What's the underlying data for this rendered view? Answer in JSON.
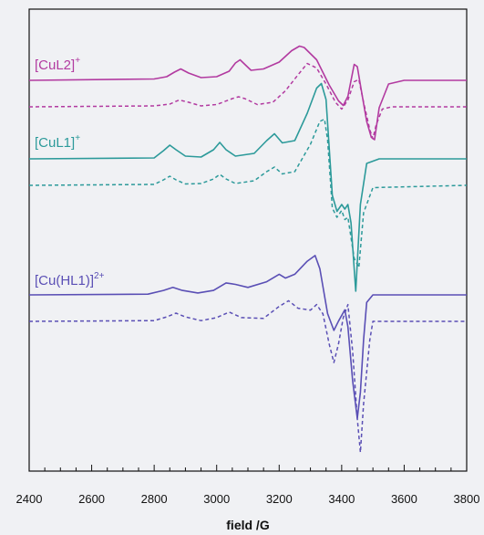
{
  "chart_data": {
    "type": "line",
    "title": "",
    "xlabel": "field /G",
    "ylabel": "",
    "xlim": [
      2400,
      3800
    ],
    "x_ticks": [
      "2400",
      "2600",
      "2800",
      "3000",
      "3200",
      "3400",
      "3600",
      "3800"
    ],
    "y_ticks_shown": false,
    "grid": false,
    "legend": "inline labels at left",
    "series": [
      {
        "name": "[CuL2]",
        "name_sup": "+",
        "color": "#b23aa0",
        "style": "solid",
        "x": [
          2400,
          2800,
          2840,
          2865,
          2885,
          2910,
          2950,
          3000,
          3040,
          3060,
          3075,
          3090,
          3110,
          3150,
          3200,
          3240,
          3265,
          3280,
          3320,
          3360,
          3390,
          3405,
          3420,
          3440,
          3450,
          3465,
          3480,
          3495,
          3505,
          3520,
          3550,
          3600,
          3800
        ],
        "y": [
          0,
          0.03,
          0.08,
          0.18,
          0.25,
          0.16,
          0.06,
          0.08,
          0.2,
          0.38,
          0.45,
          0.35,
          0.22,
          0.25,
          0.4,
          0.65,
          0.75,
          0.72,
          0.45,
          -0.1,
          -0.45,
          -0.55,
          -0.35,
          0.35,
          0.3,
          -0.3,
          -0.9,
          -1.25,
          -1.3,
          -0.6,
          -0.08,
          0,
          0
        ]
      },
      {
        "name": "",
        "color": "#b23aa0",
        "style": "dashed",
        "x": [
          2400,
          2800,
          2850,
          2880,
          2910,
          2950,
          3000,
          3050,
          3070,
          3090,
          3130,
          3180,
          3220,
          3260,
          3290,
          3320,
          3350,
          3380,
          3400,
          3420,
          3440,
          3455,
          3470,
          3490,
          3500,
          3510,
          3530,
          3560,
          3600,
          3800
        ],
        "y": [
          0,
          0.02,
          0.06,
          0.15,
          0.1,
          0.02,
          0.05,
          0.18,
          0.22,
          0.18,
          0.05,
          0.1,
          0.35,
          0.7,
          0.95,
          0.85,
          0.5,
          0.1,
          -0.05,
          0.15,
          0.55,
          0.6,
          0.1,
          -0.5,
          -0.7,
          -0.4,
          -0.05,
          0,
          0,
          0
        ]
      },
      {
        "name": "[CuL1]",
        "name_sup": "+",
        "color": "#2c9a9a",
        "style": "solid",
        "x": [
          2400,
          2800,
          2830,
          2850,
          2870,
          2900,
          2950,
          2990,
          3010,
          3030,
          3060,
          3120,
          3160,
          3185,
          3210,
          3250,
          3290,
          3320,
          3335,
          3350,
          3370,
          3385,
          3400,
          3410,
          3420,
          3430,
          3445,
          3460,
          3480,
          3520,
          3800
        ],
        "y": [
          0,
          0.02,
          0.18,
          0.3,
          0.2,
          0.06,
          0.04,
          0.2,
          0.36,
          0.2,
          0.06,
          0.12,
          0.4,
          0.55,
          0.35,
          0.4,
          1.0,
          1.55,
          1.65,
          1.3,
          -0.8,
          -1.15,
          -1.0,
          -1.1,
          -1.0,
          -1.4,
          -2.9,
          -1.0,
          -0.1,
          0,
          0
        ]
      },
      {
        "name": "",
        "color": "#2c9a9a",
        "style": "dashed",
        "x": [
          2400,
          2800,
          2830,
          2850,
          2870,
          2900,
          2950,
          2990,
          3010,
          3030,
          3060,
          3120,
          3160,
          3185,
          3210,
          3250,
          3300,
          3330,
          3345,
          3355,
          3370,
          3385,
          3400,
          3410,
          3420,
          3440,
          3455,
          3470,
          3500,
          3800
        ],
        "y": [
          0,
          0.02,
          0.12,
          0.2,
          0.12,
          0.03,
          0.04,
          0.14,
          0.24,
          0.14,
          0.04,
          0.1,
          0.3,
          0.4,
          0.25,
          0.3,
          0.9,
          1.4,
          1.45,
          1.0,
          -0.5,
          -0.7,
          -0.55,
          -0.75,
          -0.7,
          -1.6,
          -1.8,
          -0.6,
          -0.05,
          0
        ]
      },
      {
        "name": "[Cu(HL1)]",
        "name_sup": "2+",
        "color": "#5a4fb5",
        "style": "solid",
        "x": [
          2400,
          2780,
          2830,
          2860,
          2890,
          2940,
          2990,
          3030,
          3060,
          3100,
          3160,
          3200,
          3220,
          3250,
          3290,
          3315,
          3330,
          3355,
          3375,
          3390,
          3410,
          3420,
          3435,
          3450,
          3460,
          3470,
          3480,
          3500,
          3800
        ],
        "y": [
          0,
          0.02,
          0.12,
          0.2,
          0.12,
          0.05,
          0.12,
          0.32,
          0.28,
          0.2,
          0.35,
          0.55,
          0.45,
          0.55,
          0.9,
          1.05,
          0.7,
          -0.5,
          -0.95,
          -0.7,
          -0.4,
          -0.85,
          -2.3,
          -3.3,
          -2.6,
          -1.2,
          -0.2,
          0,
          0
        ]
      },
      {
        "name": "",
        "color": "#5a4fb5",
        "style": "dashed",
        "x": [
          2400,
          2800,
          2840,
          2870,
          2900,
          2950,
          3000,
          3040,
          3080,
          3150,
          3200,
          3230,
          3260,
          3300,
          3320,
          3340,
          3360,
          3375,
          3390,
          3405,
          3420,
          3435,
          3450,
          3460,
          3470,
          3490,
          3500,
          3800
        ],
        "y": [
          0,
          0.02,
          0.12,
          0.22,
          0.12,
          0.02,
          0.1,
          0.25,
          0.1,
          0.08,
          0.4,
          0.55,
          0.35,
          0.3,
          0.45,
          0.2,
          -0.6,
          -1.1,
          -0.6,
          0.1,
          0.45,
          -0.8,
          -2.6,
          -3.5,
          -2.2,
          -0.5,
          0,
          0
        ]
      }
    ]
  }
}
